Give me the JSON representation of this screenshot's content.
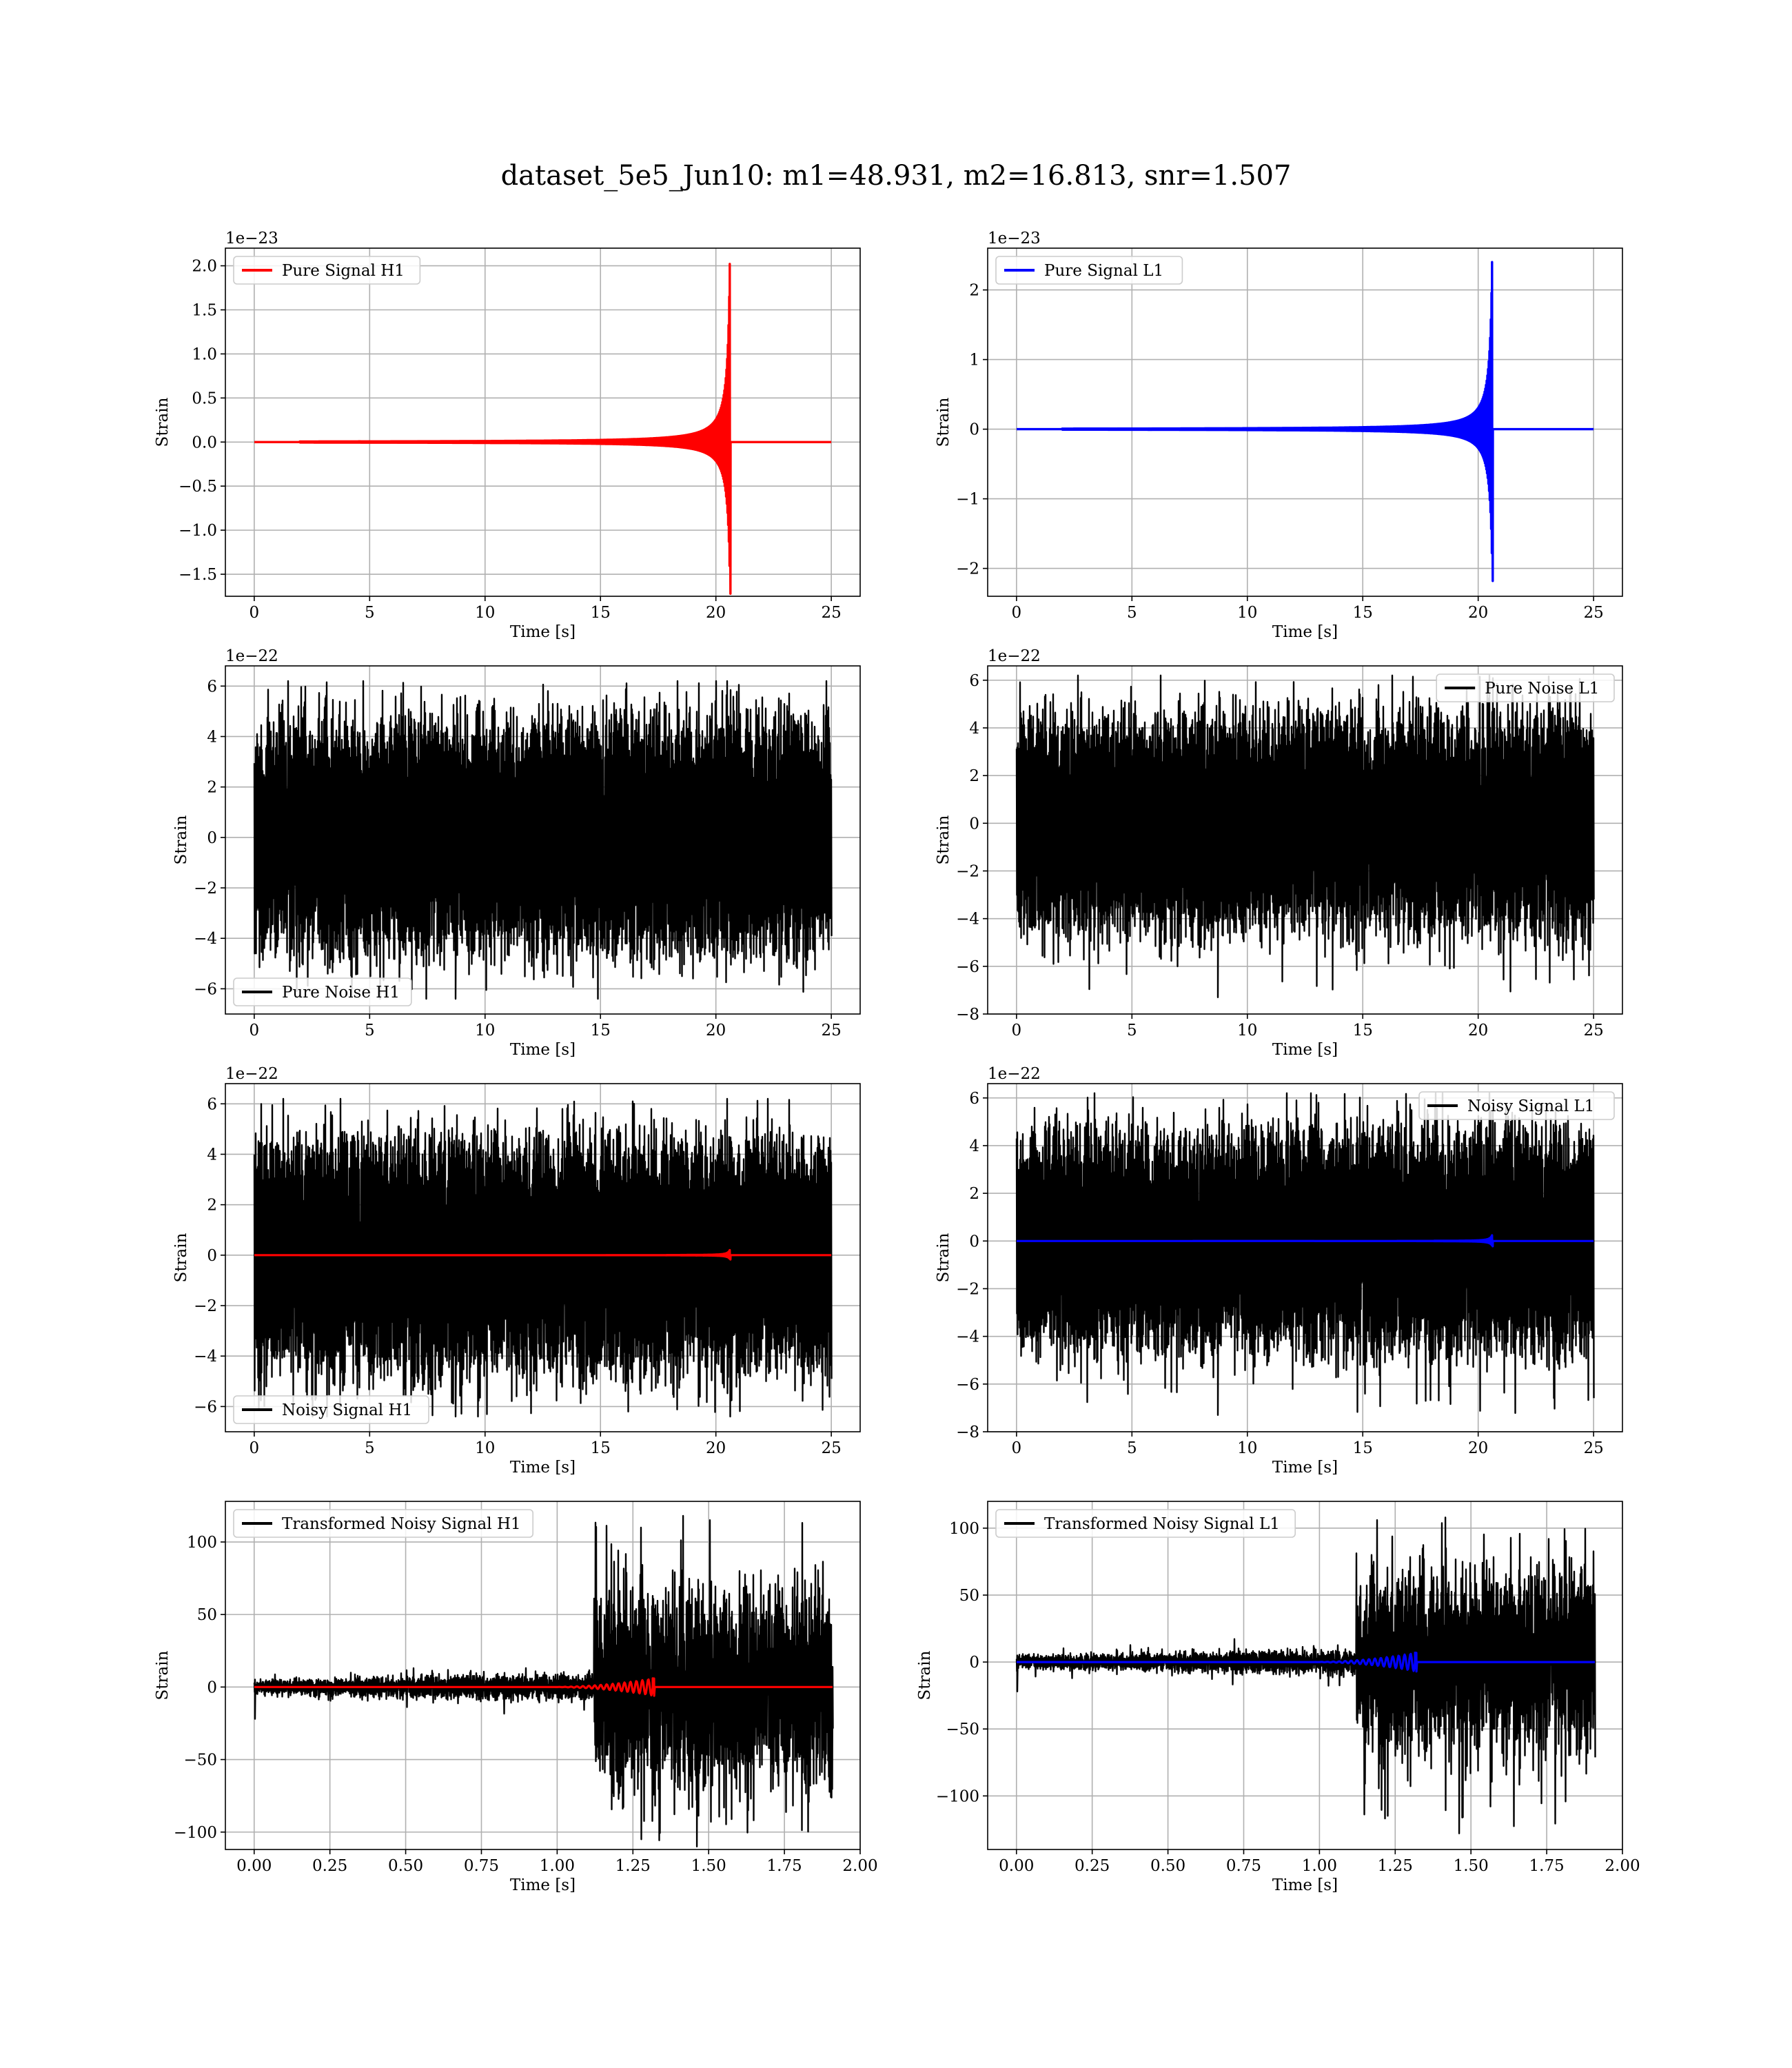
{
  "figure": {
    "suptitle": "dataset_5e5_Jun10: m1=48.931, m2=16.813, snr=1.507"
  },
  "chart_data": [
    {
      "id": "pure-signal-h1",
      "type": "line",
      "xlabel": "Time [s]",
      "ylabel": "Strain",
      "offset_text": "1e−23",
      "xlim": [
        -1.25,
        26.25
      ],
      "ylim": [
        -1.75,
        2.2
      ],
      "xticks": [
        0,
        5,
        10,
        15,
        20,
        25
      ],
      "xtick_labels": [
        "0",
        "5",
        "10",
        "15",
        "20",
        "25"
      ],
      "yticks": [
        -1.5,
        -1.0,
        -0.5,
        0.0,
        0.5,
        1.0,
        1.5,
        2.0
      ],
      "ytick_labels": [
        "−1.5",
        "−1.0",
        "−0.5",
        "0.0",
        "0.5",
        "1.0",
        "1.5",
        "2.0"
      ],
      "grid": true,
      "legend_loc": "upper-left",
      "series": [
        {
          "name": "Pure Signal H1",
          "color": "#ff0000",
          "kind": "chirp",
          "x_start": 0,
          "x_end": 25,
          "merger_x": 20.6,
          "peak_pos": 2.02,
          "peak_neg": -1.72
        }
      ]
    },
    {
      "id": "pure-signal-l1",
      "type": "line",
      "xlabel": "Time [s]",
      "ylabel": "Strain",
      "offset_text": "1e−23",
      "xlim": [
        -1.25,
        26.25
      ],
      "ylim": [
        -2.4,
        2.6
      ],
      "xticks": [
        0,
        5,
        10,
        15,
        20,
        25
      ],
      "xtick_labels": [
        "0",
        "5",
        "10",
        "15",
        "20",
        "25"
      ],
      "yticks": [
        -2,
        -1,
        0,
        1,
        2
      ],
      "ytick_labels": [
        "−2",
        "−1",
        "0",
        "1",
        "2"
      ],
      "grid": true,
      "legend_loc": "upper-left",
      "series": [
        {
          "name": "Pure Signal L1",
          "color": "#0000ff",
          "kind": "chirp",
          "x_start": 0,
          "x_end": 25,
          "merger_x": 20.6,
          "peak_pos": 2.4,
          "peak_neg": -2.18
        }
      ]
    },
    {
      "id": "pure-noise-h1",
      "type": "line",
      "xlabel": "Time [s]",
      "ylabel": "Strain",
      "offset_text": "1e−22",
      "xlim": [
        -1.25,
        26.25
      ],
      "ylim": [
        -7.0,
        6.8
      ],
      "xticks": [
        0,
        5,
        10,
        15,
        20,
        25
      ],
      "xtick_labels": [
        "0",
        "5",
        "10",
        "15",
        "20",
        "25"
      ],
      "yticks": [
        -6,
        -4,
        -2,
        0,
        2,
        4,
        6
      ],
      "ytick_labels": [
        "−6",
        "−4",
        "−2",
        "0",
        "2",
        "4",
        "6"
      ],
      "grid": true,
      "legend_loc": "lower-left",
      "series": [
        {
          "name": "Pure Noise H1",
          "color": "#000000",
          "kind": "noise",
          "x_start": 0,
          "x_end": 25,
          "core_amp": 3.5,
          "max_pos": 6.2,
          "max_neg": -6.4
        }
      ]
    },
    {
      "id": "pure-noise-l1",
      "type": "line",
      "xlabel": "Time [s]",
      "ylabel": "Strain",
      "offset_text": "1e−22",
      "xlim": [
        -1.25,
        26.25
      ],
      "ylim": [
        -8.0,
        6.6
      ],
      "xticks": [
        0,
        5,
        10,
        15,
        20,
        25
      ],
      "xtick_labels": [
        "0",
        "5",
        "10",
        "15",
        "20",
        "25"
      ],
      "yticks": [
        -8,
        -6,
        -4,
        -2,
        0,
        2,
        4,
        6
      ],
      "ytick_labels": [
        "−8",
        "−6",
        "−4",
        "−2",
        "0",
        "2",
        "4",
        "6"
      ],
      "grid": true,
      "legend_loc": "upper-right",
      "series": [
        {
          "name": "Pure Noise L1",
          "color": "#000000",
          "kind": "noise",
          "x_start": 0,
          "x_end": 25,
          "core_amp": 3.5,
          "max_pos": 6.2,
          "max_neg": -7.3
        }
      ]
    },
    {
      "id": "noisy-signal-h1",
      "type": "line",
      "xlabel": "Time [s]",
      "ylabel": "Strain",
      "offset_text": "1e−22",
      "xlim": [
        -1.25,
        26.25
      ],
      "ylim": [
        -7.0,
        6.8
      ],
      "xticks": [
        0,
        5,
        10,
        15,
        20,
        25
      ],
      "xtick_labels": [
        "0",
        "5",
        "10",
        "15",
        "20",
        "25"
      ],
      "yticks": [
        -6,
        -4,
        -2,
        0,
        2,
        4,
        6
      ],
      "ytick_labels": [
        "−6",
        "−4",
        "−2",
        "0",
        "2",
        "4",
        "6"
      ],
      "grid": true,
      "legend_loc": "lower-left",
      "series": [
        {
          "name": "Noisy Signal H1",
          "color": "#000000",
          "kind": "noise",
          "x_start": 0,
          "x_end": 25,
          "core_amp": 3.5,
          "max_pos": 6.2,
          "max_neg": -6.4
        },
        {
          "color": "#ff0000",
          "kind": "signal-overlay",
          "x_start": 0,
          "x_end": 25,
          "merger_x": 20.6,
          "peak_pos": 0.2,
          "peak_neg": -0.17
        }
      ]
    },
    {
      "id": "noisy-signal-l1",
      "type": "line",
      "xlabel": "Time [s]",
      "ylabel": "Strain",
      "offset_text": "1e−22",
      "xlim": [
        -1.25,
        26.25
      ],
      "ylim": [
        -8.0,
        6.6
      ],
      "xticks": [
        0,
        5,
        10,
        15,
        20,
        25
      ],
      "xtick_labels": [
        "0",
        "5",
        "10",
        "15",
        "20",
        "25"
      ],
      "yticks": [
        -8,
        -6,
        -4,
        -2,
        0,
        2,
        4,
        6
      ],
      "ytick_labels": [
        "−8",
        "−6",
        "−4",
        "−2",
        "0",
        "2",
        "4",
        "6"
      ],
      "grid": true,
      "legend_loc": "upper-right",
      "series": [
        {
          "name": "Noisy Signal L1",
          "color": "#000000",
          "kind": "noise",
          "x_start": 0,
          "x_end": 25,
          "core_amp": 3.5,
          "max_pos": 6.2,
          "max_neg": -7.3
        },
        {
          "color": "#0000ff",
          "kind": "signal-overlay",
          "x_start": 0,
          "x_end": 25,
          "merger_x": 20.6,
          "peak_pos": 0.24,
          "peak_neg": -0.22
        }
      ]
    },
    {
      "id": "transformed-noisy-signal-h1",
      "type": "line",
      "xlabel": "Time [s]",
      "ylabel": "Strain",
      "offset_text": "",
      "xlim": [
        -0.095,
        2.0
      ],
      "ylim": [
        -112,
        128
      ],
      "xticks": [
        0.0,
        0.25,
        0.5,
        0.75,
        1.0,
        1.25,
        1.5,
        1.75,
        2.0
      ],
      "xtick_labels": [
        "0.00",
        "0.25",
        "0.50",
        "0.75",
        "1.00",
        "1.25",
        "1.50",
        "1.75",
        "2.00"
      ],
      "yticks": [
        -100,
        -50,
        0,
        50,
        100
      ],
      "ytick_labels": [
        "−100",
        "−50",
        "0",
        "50",
        "100"
      ],
      "grid": true,
      "legend_loc": "upper-left",
      "series": [
        {
          "name": "Transformed Noisy Signal H1",
          "color": "#000000",
          "kind": "transformed-noise",
          "x_start": 0,
          "x_end": 1.91,
          "jump_x": 1.12,
          "quiet_amp": 7,
          "loud_amp": 55,
          "max_pos": 118,
          "max_neg": -110
        },
        {
          "color": "#ff0000",
          "kind": "transformed-overlay",
          "x_start": 0,
          "x_end": 1.91,
          "merger_x": 1.32,
          "peak": 6
        }
      ]
    },
    {
      "id": "transformed-noisy-signal-l1",
      "type": "line",
      "xlabel": "Time [s]",
      "ylabel": "Strain",
      "offset_text": "",
      "xlim": [
        -0.095,
        2.0
      ],
      "ylim": [
        -140,
        120
      ],
      "xticks": [
        0.0,
        0.25,
        0.5,
        0.75,
        1.0,
        1.25,
        1.5,
        1.75,
        2.0
      ],
      "xtick_labels": [
        "0.00",
        "0.25",
        "0.50",
        "0.75",
        "1.00",
        "1.25",
        "1.50",
        "1.75",
        "2.00"
      ],
      "yticks": [
        -100,
        -50,
        0,
        50,
        100
      ],
      "ytick_labels": [
        "−100",
        "−50",
        "0",
        "50",
        "100"
      ],
      "grid": true,
      "legend_loc": "upper-left",
      "series": [
        {
          "name": "Transformed Noisy Signal L1",
          "color": "#000000",
          "kind": "transformed-noise",
          "x_start": 0,
          "x_end": 1.91,
          "jump_x": 1.12,
          "quiet_amp": 7,
          "loud_amp": 55,
          "max_pos": 108,
          "max_neg": -128
        },
        {
          "color": "#0000ff",
          "kind": "transformed-overlay",
          "x_start": 0,
          "x_end": 1.91,
          "merger_x": 1.32,
          "peak": 7
        }
      ]
    }
  ]
}
